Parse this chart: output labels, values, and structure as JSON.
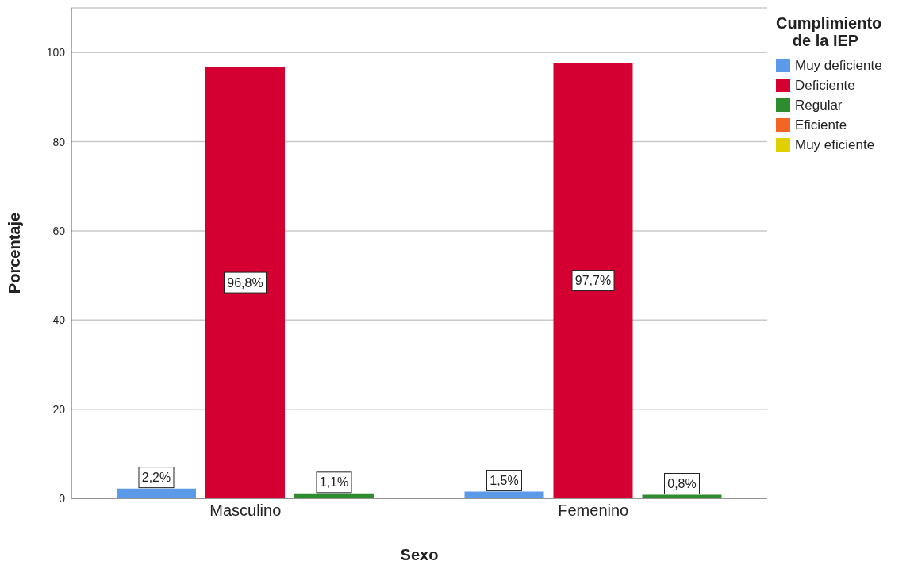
{
  "chart_data": {
    "type": "bar",
    "xlabel": "Sexo",
    "ylabel": "Porcentaje",
    "legend_title": "Cumplimiento de la IEP",
    "categories": [
      "Masculino",
      "Femenino"
    ],
    "series": [
      {
        "name": "Muy deficiente",
        "color": "#5a9ae8",
        "values": [
          2.2,
          1.5
        ],
        "value_labels": [
          "2,2%",
          "1,5%"
        ]
      },
      {
        "name": "Deficiente",
        "color": "#d50032",
        "values": [
          96.8,
          97.7
        ],
        "value_labels": [
          "96,8%",
          "97,7%"
        ]
      },
      {
        "name": "Regular",
        "color": "#2e8b2e",
        "values": [
          1.1,
          0.8
        ],
        "value_labels": [
          "1,1%",
          "0,8%"
        ]
      },
      {
        "name": "Eficiente",
        "color": "#f26522",
        "values": [
          null,
          null
        ]
      },
      {
        "name": "Muy eficiente",
        "color": "#e0d000",
        "values": [
          null,
          null
        ]
      }
    ],
    "ylim": [
      0,
      110
    ],
    "yticks": [
      0,
      20,
      40,
      60,
      80,
      100
    ],
    "grid": "y",
    "legend": "top right"
  }
}
